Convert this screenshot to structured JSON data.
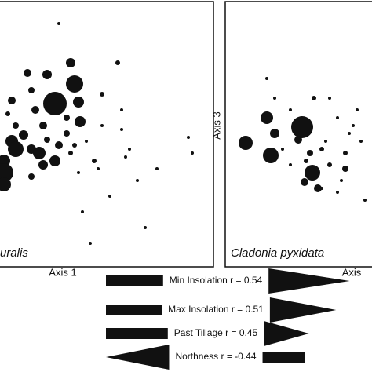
{
  "chart_data": [
    {
      "type": "scatter",
      "title": "uralis",
      "x_label": "Axis 1",
      "xlim": [
        0,
        277
      ],
      "ylim": [
        0,
        338
      ],
      "color": "#111111",
      "x": [
        75,
        100,
        95,
        105,
        107,
        65,
        40,
        20,
        10,
        10,
        10,
        20,
        25,
        35,
        45,
        55,
        60,
        75,
        80,
        50,
        60,
        65,
        90,
        135,
        155,
        160,
        125,
        130,
        160,
        170,
        105,
        95,
        110,
        120,
        190,
        205,
        245,
        250,
        80,
        45,
        25,
        135,
        165,
        100,
        145,
        180,
        115,
        90,
        45,
        15
      ],
      "y": [
        208,
        233,
        260,
        210,
        185,
        245,
        247,
        212,
        135,
        120,
        105,
        160,
        150,
        168,
        150,
        145,
        130,
        135,
        155,
        200,
        180,
        162,
        190,
        220,
        260,
        200,
        135,
        125,
        175,
        150,
        120,
        145,
        70,
        30,
        50,
        125,
        165,
        145,
        310,
        115,
        180,
        180,
        140,
        155,
        90,
        110,
        160,
        170,
        225,
        195
      ],
      "sizes": [
        15,
        11,
        6,
        7,
        7,
        6,
        5,
        5,
        8,
        12,
        9,
        8,
        10,
        6,
        6,
        8,
        6,
        7,
        5,
        5,
        5,
        4,
        4,
        3,
        3,
        2,
        3,
        2,
        2,
        2,
        2,
        3,
        2,
        2,
        2,
        2,
        2,
        2,
        2,
        4,
        4,
        2,
        2,
        3,
        2,
        2,
        2,
        4,
        4,
        3
      ]
    },
    {
      "type": "scatter",
      "title": "Cladonia pyxidata",
      "x_label": "Axis",
      "y_label": "Axis 3",
      "xlim": [
        0,
        193
      ],
      "ylim": [
        0,
        338
      ],
      "color": "#111111",
      "x": [
        98,
        58,
        53,
        26,
        63,
        111,
        118,
        101,
        93,
        108,
        123,
        133,
        153,
        153,
        143,
        158,
        173,
        163,
        83,
        133,
        53,
        113,
        123,
        143,
        128,
        103,
        83,
        73,
        178,
        148,
        63,
        168
      ],
      "y": [
        178,
        142,
        190,
        158,
        170,
        120,
        100,
        108,
        162,
        145,
        150,
        130,
        125,
        145,
        190,
        170,
        160,
        180,
        130,
        215,
        240,
        215,
        100,
        95,
        160,
        135,
        200,
        150,
        85,
        110,
        215,
        200
      ],
      "sizes": [
        14,
        10,
        8,
        9,
        6,
        10,
        5,
        5,
        5,
        4,
        3,
        3,
        4,
        3,
        2,
        2,
        2,
        2,
        2,
        2,
        2,
        3,
        2,
        2,
        2,
        3,
        2,
        2,
        2,
        2,
        2,
        2
      ]
    }
  ],
  "biplot_vectors": [
    {
      "name": "Min Insolation",
      "r": 0.54,
      "r_label": "r = 0.54"
    },
    {
      "name": "Max Insolation",
      "r": 0.51,
      "r_label": "r = 0.51"
    },
    {
      "name": "Past Tillage",
      "r": 0.45,
      "r_label": "r = 0.45"
    },
    {
      "name": "Northness",
      "r": -0.44,
      "r_label": "r = -0.44"
    }
  ]
}
